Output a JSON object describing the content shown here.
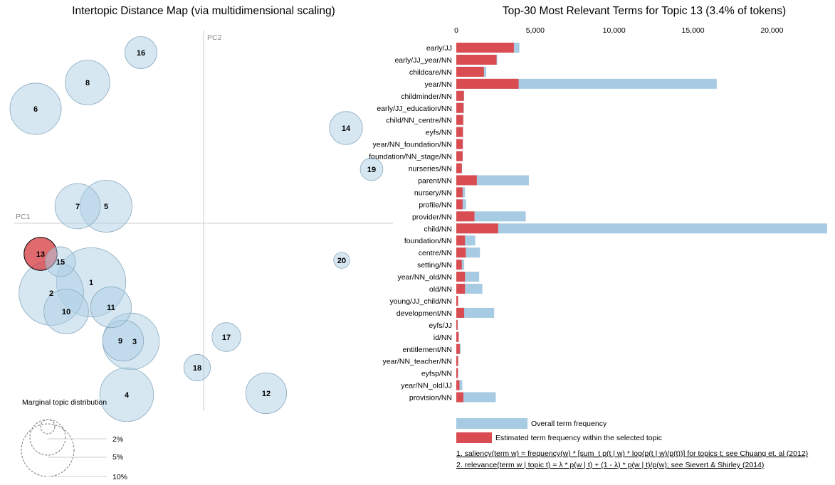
{
  "colors": {
    "bubble": "#aecfe5",
    "bubble_stroke": "#8aaabf",
    "selected": "#d6393f",
    "overall_bar": "#a6cbe3",
    "topic_bar": "#d94c51",
    "axis": "#cccccc"
  },
  "left_panel": {
    "title": "Intertopic Distance Map (via multidimensional scaling)",
    "pc1_label": "PC1",
    "pc2_label": "PC2",
    "marginal_title": "Marginal topic distribution",
    "marginal_labels": [
      "2%",
      "5%",
      "10%"
    ]
  },
  "right_panel": {
    "title": "Top-30 Most Relevant Terms for Topic 13 (3.4% of tokens)",
    "legend_overall": "Overall term frequency",
    "legend_topic": "Estimated term frequency within the selected topic",
    "footnote1": "1. saliency(term w) = frequency(w) * [sum_t p(t | w) * log(p(t | w)/p(t))] for topics t; see Chuang et. al (2012)",
    "footnote2": "2. relevance(term w | topic t) = λ * p(w | t) + (1 - λ) * p(w | t)/p(w); see Sievert & Shirley (2014)"
  },
  "chart_data": [
    {
      "type": "scatter",
      "title": "Intertopic Distance Map (via multidimensional scaling)",
      "xlabel": "PC1",
      "ylabel": "PC2",
      "selected_topic": "13",
      "topics": [
        {
          "id": "1",
          "x": -0.158,
          "y": -0.083,
          "size": 7.5
        },
        {
          "id": "2",
          "x": -0.214,
          "y": -0.098,
          "size": 6.5
        },
        {
          "id": "3",
          "x": -0.102,
          "y": -0.166,
          "size": 5.0
        },
        {
          "id": "4",
          "x": -0.108,
          "y": -0.241,
          "size": 4.5
        },
        {
          "id": "5",
          "x": -0.137,
          "y": 0.024,
          "size": 4.2
        },
        {
          "id": "6",
          "x": -0.236,
          "y": 0.161,
          "size": 4.1
        },
        {
          "id": "7",
          "x": -0.177,
          "y": 0.024,
          "size": 3.2
        },
        {
          "id": "8",
          "x": -0.163,
          "y": 0.198,
          "size": 3.1
        },
        {
          "id": "9",
          "x": -0.113,
          "y": -0.165,
          "size": 2.6
        },
        {
          "id": "10",
          "x": -0.193,
          "y": -0.124,
          "size": 3.1
        },
        {
          "id": "11",
          "x": -0.13,
          "y": -0.118,
          "size": 2.6
        },
        {
          "id": "12",
          "x": 0.088,
          "y": -0.239,
          "size": 2.6
        },
        {
          "id": "13",
          "x": -0.229,
          "y": -0.043,
          "size": 1.7
        },
        {
          "id": "14",
          "x": 0.2,
          "y": 0.134,
          "size": 1.7
        },
        {
          "id": "15",
          "x": -0.201,
          "y": -0.054,
          "size": 1.4
        },
        {
          "id": "16",
          "x": -0.088,
          "y": 0.24,
          "size": 1.6
        },
        {
          "id": "17",
          "x": 0.032,
          "y": -0.16,
          "size": 1.3
        },
        {
          "id": "18",
          "x": -0.009,
          "y": -0.203,
          "size": 1.1
        },
        {
          "id": "19",
          "x": 0.236,
          "y": 0.076,
          "size": 0.8
        },
        {
          "id": "20",
          "x": 0.194,
          "y": -0.052,
          "size": 0.4
        }
      ]
    },
    {
      "type": "bar",
      "orientation": "horizontal",
      "title": "Top-30 Most Relevant Terms for Topic 13 (3.4% of tokens)",
      "xlim": [
        0,
        23500
      ],
      "ticks": [
        0,
        5000,
        10000,
        15000,
        20000
      ],
      "tick_labels": [
        "0",
        "5,000",
        "10,000",
        "15,000",
        "20,000"
      ],
      "categories": [
        "early/JJ",
        "early/JJ_year/NN",
        "childcare/NN",
        "year/NN",
        "childminder/NN",
        "early/JJ_education/NN",
        "child/NN_centre/NN",
        "eyfs/NN",
        "year/NN_foundation/NN",
        "foundation/NN_stage/NN",
        "nurseries/NN",
        "parent/NN",
        "nursery/NN",
        "profile/NN",
        "provider/NN",
        "child/NN",
        "foundation/NN",
        "centre/NN",
        "setting/NN",
        "year/NN_old/NN",
        "old/NN",
        "young/JJ_child/NN",
        "development/NN",
        "eyfs/JJ",
        "id/NN",
        "entitlement/NN",
        "year/NN_teacher/NN",
        "eyfsp/NN",
        "year/NN_old/JJ",
        "provision/NN"
      ],
      "series": [
        {
          "name": "Overall term frequency",
          "values": [
            4000,
            2600,
            1900,
            16500,
            500,
            480,
            450,
            430,
            420,
            410,
            370,
            4600,
            550,
            620,
            4400,
            24000,
            1200,
            1500,
            500,
            1450,
            1650,
            120,
            2400,
            100,
            160,
            280,
            130,
            120,
            380,
            2500
          ]
        },
        {
          "name": "Estimated term frequency within the selected topic",
          "values": [
            3650,
            2550,
            1750,
            3950,
            480,
            460,
            440,
            420,
            410,
            400,
            350,
            1300,
            400,
            400,
            1150,
            2650,
            550,
            600,
            350,
            550,
            550,
            110,
            500,
            80,
            150,
            220,
            110,
            100,
            200,
            450
          ]
        }
      ]
    }
  ]
}
